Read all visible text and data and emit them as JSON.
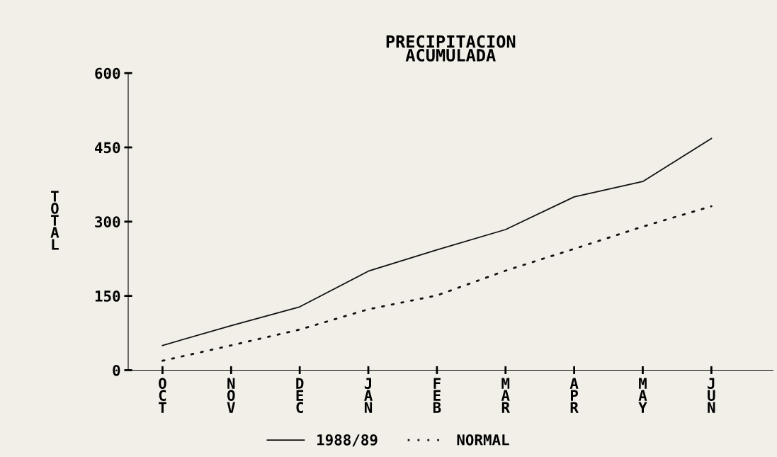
{
  "chart_data": {
    "type": "line",
    "title": "PRECIPITACION\nACUMULADA",
    "ylabel": "TOTAL",
    "categories": [
      "OCT",
      "NOV",
      "DEC",
      "JAN",
      "FEB",
      "MAR",
      "APR",
      "MAY",
      "JUN"
    ],
    "ylim": [
      0,
      600
    ],
    "yticks": [
      0,
      150,
      300,
      450,
      600
    ],
    "grid": false,
    "legend": "bottom",
    "series": [
      {
        "name": "1988/89",
        "color": "#111111",
        "line_style": "solid",
        "values": [
          50,
          90,
          128,
          200,
          243,
          284,
          350,
          381,
          468
        ]
      },
      {
        "name": "NORMAL",
        "color": "#111111",
        "line_style": "dotted",
        "values": [
          19,
          50,
          82,
          123,
          151,
          201,
          245,
          290,
          331
        ]
      }
    ]
  }
}
